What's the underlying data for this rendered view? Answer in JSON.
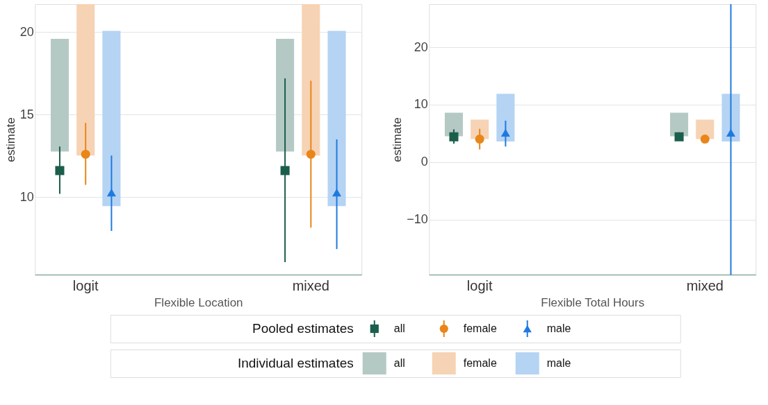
{
  "chart_data": [
    {
      "type": "bar",
      "xlabel": "Flexible Location",
      "ylabel": "estimate",
      "categories": [
        "logit",
        "mixed"
      ],
      "ylim": [
        5.3,
        21.7
      ],
      "yticks": [
        10,
        15,
        20
      ],
      "grid": "y",
      "legend": "bottom",
      "legend_title": "Pooled estimates",
      "series": [
        {
          "name": "all",
          "color": "#b5c9c4",
          "base": [
            12.76,
            12.76
          ],
          "values": [
            6.84,
            6.84
          ]
        },
        {
          "name": "female",
          "color": "#f6d3b4",
          "base": [
            12.52,
            12.52
          ],
          "values": [
            9.18,
            9.18
          ]
        },
        {
          "name": "male",
          "color": "#b5d3f3",
          "base": [
            9.45,
            9.45
          ],
          "values": [
            10.63,
            10.63
          ]
        },
        {
          "name": "all",
          "type": "scatter",
          "color": "#1b5e4b",
          "marker": "square",
          "values": [
            11.61,
            11.61
          ],
          "errors": [
            [
              10.2,
              13.07
            ],
            [
              6.06,
              17.2
            ]
          ]
        },
        {
          "name": "female",
          "type": "scatter",
          "color": "#e8861a",
          "marker": "circle",
          "values": [
            12.6,
            12.6
          ],
          "errors": [
            [
              10.75,
              14.5
            ],
            [
              8.15,
              17.05
            ]
          ]
        },
        {
          "name": "male",
          "type": "scatter",
          "color": "#1f7ae0",
          "marker": "triangle",
          "values": [
            10.28,
            10.28
          ],
          "errors": [
            [
              7.95,
              12.52
            ],
            [
              6.85,
              13.5
            ]
          ]
        }
      ]
    },
    {
      "type": "bar",
      "xlabel": "Flexible Total Hours",
      "ylabel": "estimate",
      "categories": [
        "logit",
        "mixed"
      ],
      "ylim": [
        -19.6,
        27.5
      ],
      "yticks": [
        -10,
        0,
        10,
        20
      ],
      "grid": "y",
      "legend_title": "Individual estimates",
      "series": [
        {
          "color": "#b5c9c4",
          "base": [
            4.5,
            4.5
          ],
          "values": [
            4.1,
            4.1
          ]
        },
        {
          "color": "#f6d3b4",
          "base": [
            4,
            4
          ],
          "values": [
            3.4,
            3.4
          ]
        },
        {
          "color": "#b5d3f3",
          "base": [
            3.6,
            3.6
          ],
          "values": [
            8.3,
            8.3
          ]
        },
        {
          "type": "scatter",
          "color": "#1b5e4b",
          "marker": "square",
          "values": [
            4.4,
            4.4
          ],
          "errors": [
            [
              3.2,
              5.7
            ],
            [
              3.7,
              5.2
            ]
          ]
        },
        {
          "type": "scatter",
          "color": "#e8861a",
          "marker": "circle",
          "values": [
            4,
            4
          ],
          "errors": [
            [
              2.2,
              5.8
            ],
            null
          ]
        },
        {
          "type": "scatter",
          "color": "#1f7ae0",
          "marker": "triangle",
          "values": [
            5.1,
            5.1
          ],
          "errors": [
            [
              2.7,
              7.2
            ],
            [
              -19.6,
              27.5
            ]
          ]
        }
      ]
    }
  ]
}
